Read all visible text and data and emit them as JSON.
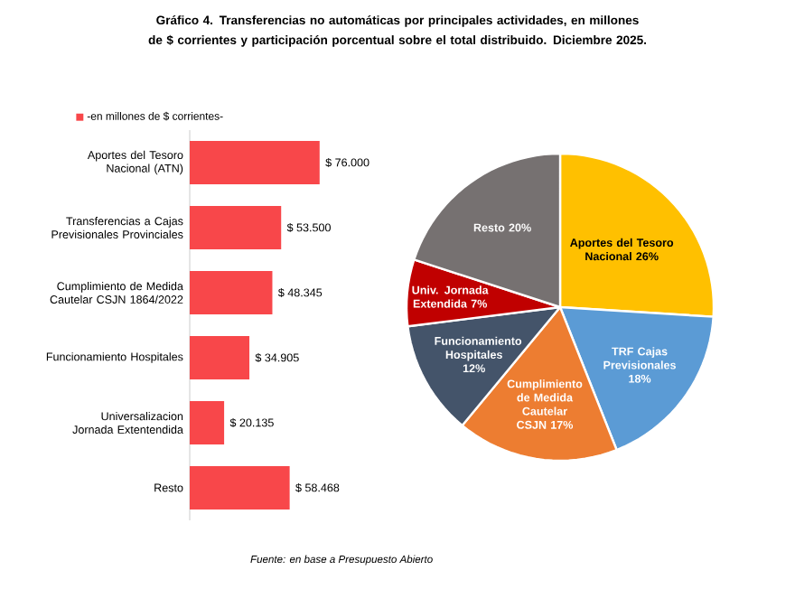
{
  "chart_data": [
    {
      "type": "bar",
      "orientation": "horizontal",
      "title": "Gráfico 4. Transferencias no automáticas por principales actividades, en millones de $ corrientes y participación porcentual sobre el total distribuido. Diciembre 2025.",
      "categories": [
        "Aportes del Tesoro Nacional (ATN)",
        "Transferencias a Cajas Previsionales Provinciales",
        "Cumplimiento de Medida Cautelar CSJN 1864/2022",
        "Funcionamiento Hospitales",
        "Universalizacion Jornada Extentendida",
        "Resto"
      ],
      "series": [
        {
          "name": "-en millones de $ corrientes-",
          "color": "#f8474a",
          "values": [
            76000,
            53500,
            48345,
            34905,
            20135,
            58468
          ],
          "value_labels": [
            "$ 76.000",
            "$ 53.500",
            "$ 48.345",
            "$ 34.905",
            "$ 20.135",
            "$ 58.468"
          ]
        }
      ],
      "legend": "top left",
      "annotations": [
        "Fuente: en base a Presupuesto Abierto"
      ]
    },
    {
      "type": "pie",
      "categories": [
        "Aportes del Tesoro Nacional",
        "TRF Cajas Previsionales",
        "Cumplimiento de Medida Cautelar CSJN",
        "Funcionamiento Hospitales",
        "Univ. Jornada Extendida",
        "Resto"
      ],
      "values": [
        26,
        18,
        17,
        12,
        7,
        20
      ],
      "colors": [
        "#ffc000",
        "#5b9bd5",
        "#ed7d31",
        "#44546a",
        "#c00000",
        "#767171"
      ],
      "value_labels": [
        "26%",
        "18%",
        "17%",
        "12%",
        "7%",
        "20%"
      ]
    }
  ]
}
